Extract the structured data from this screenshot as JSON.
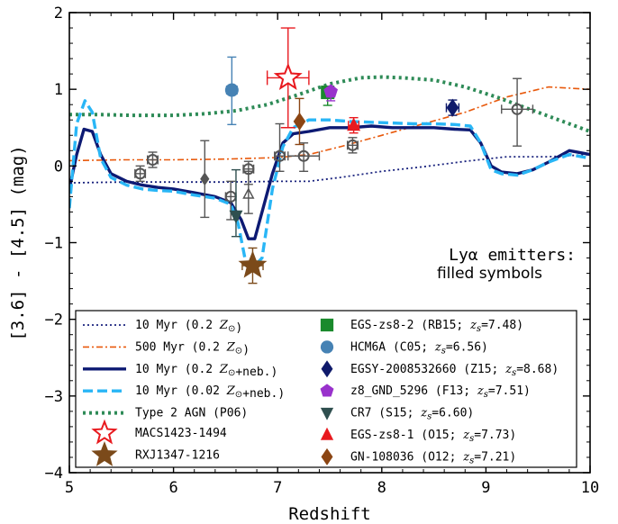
{
  "chart_data": {
    "type": "line",
    "xlabel": "Redshift",
    "ylabel": "[3.6] - [4.5] (mag)",
    "xlim": [
      5,
      10
    ],
    "ylim": [
      -4,
      2
    ],
    "xticks": [
      "5",
      "6",
      "7",
      "8",
      "9",
      "10"
    ],
    "yticks": [
      "−4",
      "−3",
      "−2",
      "−1",
      "0",
      "1",
      "2"
    ],
    "annotation_line1": "Lyα emitters:",
    "annotation_line2": "filled symbols",
    "series": [
      {
        "name": "10 Myr (0.2 Z⊙)",
        "color": "#1a237e",
        "style": "dotted",
        "x": [
          5.0,
          5.5,
          6.0,
          6.5,
          7.0,
          7.3,
          7.6,
          8.0,
          8.4,
          8.8,
          9.2,
          9.6,
          10.0
        ],
        "y": [
          -0.22,
          -0.21,
          -0.21,
          -0.21,
          -0.2,
          -0.2,
          -0.15,
          -0.07,
          -0.01,
          0.06,
          0.12,
          0.12,
          0.15
        ]
      },
      {
        "name": "500 Myr (0.2 Z⊙)",
        "color": "#e8590c",
        "style": "dashdot",
        "x": [
          5.0,
          5.5,
          6.0,
          6.5,
          7.0,
          7.3,
          7.6,
          8.0,
          8.4,
          8.8,
          9.2,
          9.6,
          10.0
        ],
        "y": [
          0.07,
          0.08,
          0.08,
          0.09,
          0.11,
          0.15,
          0.25,
          0.4,
          0.55,
          0.7,
          0.9,
          1.03,
          1.0
        ]
      },
      {
        "name": "10 Myr (0.2 Z⊙+neb.)",
        "color": "#0d1a73",
        "style": "solid-thick",
        "x": [
          5.0,
          5.07,
          5.14,
          5.22,
          5.3,
          5.4,
          5.55,
          5.7,
          5.85,
          6.0,
          6.2,
          6.4,
          6.55,
          6.65,
          6.72,
          6.78,
          6.85,
          6.95,
          7.05,
          7.15,
          7.3,
          7.5,
          7.7,
          7.9,
          8.1,
          8.3,
          8.5,
          8.7,
          8.85,
          8.95,
          9.05,
          9.15,
          9.3,
          9.45,
          9.6,
          9.8,
          10.0
        ],
        "y": [
          -0.3,
          0.15,
          0.48,
          0.45,
          0.15,
          -0.1,
          -0.2,
          -0.25,
          -0.28,
          -0.3,
          -0.35,
          -0.4,
          -0.48,
          -0.7,
          -0.95,
          -0.95,
          -0.6,
          -0.1,
          0.3,
          0.42,
          0.45,
          0.5,
          0.5,
          0.52,
          0.5,
          0.5,
          0.5,
          0.48,
          0.47,
          0.3,
          0.0,
          -0.08,
          -0.1,
          -0.05,
          0.05,
          0.2,
          0.15
        ]
      },
      {
        "name": "10 Myr (0.02 Z⊙+neb.)",
        "color": "#29b6f6",
        "style": "dashed-thick",
        "x": [
          5.0,
          5.07,
          5.15,
          5.22,
          5.3,
          5.4,
          5.55,
          5.7,
          5.85,
          6.0,
          6.2,
          6.4,
          6.55,
          6.62,
          6.7,
          6.78,
          6.85,
          6.95,
          7.05,
          7.15,
          7.3,
          7.5,
          7.7,
          7.9,
          8.1,
          8.3,
          8.5,
          8.7,
          8.85,
          8.95,
          9.05,
          9.15,
          9.3,
          9.45,
          9.6,
          9.8,
          10.0
        ],
        "y": [
          -0.55,
          0.55,
          0.85,
          0.7,
          0.1,
          -0.15,
          -0.25,
          -0.3,
          -0.32,
          -0.33,
          -0.38,
          -0.42,
          -0.5,
          -0.75,
          -1.3,
          -1.3,
          -1.2,
          -0.3,
          0.25,
          0.5,
          0.6,
          0.6,
          0.58,
          0.57,
          0.56,
          0.55,
          0.55,
          0.54,
          0.52,
          0.3,
          -0.05,
          -0.1,
          -0.12,
          -0.05,
          0.05,
          0.15,
          0.1
        ]
      },
      {
        "name": "Type 2 AGN (P06)",
        "color": "#2e8b57",
        "style": "dotted-thick",
        "x": [
          5.0,
          5.3,
          5.6,
          6.0,
          6.3,
          6.6,
          6.9,
          7.2,
          7.5,
          7.8,
          8.0,
          8.2,
          8.5,
          8.8,
          9.1,
          9.4,
          9.7,
          10.0
        ],
        "y": [
          0.67,
          0.67,
          0.66,
          0.66,
          0.68,
          0.72,
          0.8,
          0.93,
          1.07,
          1.15,
          1.16,
          1.15,
          1.12,
          1.03,
          0.9,
          0.75,
          0.6,
          0.45
        ]
      }
    ],
    "open_circles": {
      "x": [
        5.68,
        5.8,
        6.55,
        6.72,
        7.02,
        7.25,
        7.72,
        9.3
      ],
      "y": [
        -0.1,
        0.08,
        -0.4,
        -0.04,
        0.13,
        0.13,
        0.27,
        0.74
      ],
      "xerr": [
        0.05,
        0.05,
        0.05,
        0.05,
        0.05,
        0.15,
        0.05,
        0.15
      ],
      "yerr_up": [
        0.1,
        0.1,
        0.2,
        0.1,
        0.42,
        0.17,
        0.1,
        0.4
      ],
      "yerr_dn": [
        0.1,
        0.1,
        0.3,
        0.2,
        0.2,
        0.2,
        0.1,
        0.48
      ]
    },
    "gray_markers": [
      {
        "shape": "diamond",
        "x": 6.3,
        "y": -0.17,
        "xerr": 0.0,
        "yerr_up": 0.5,
        "yerr_dn": 0.5
      },
      {
        "shape": "triangle-open",
        "x": 6.72,
        "y": -0.37,
        "xerr": 0.0,
        "yerr_up": 0.3,
        "yerr_dn": 0.25
      }
    ],
    "points": [
      {
        "name": "MACS1423-1494",
        "shape": "star-open",
        "color": "#e8191e",
        "x": 7.1,
        "y": 1.15,
        "xerr": 0.2,
        "yerr_up": 0.65,
        "yerr_dn": 0.65
      },
      {
        "name": "RXJ1347-1216",
        "shape": "star-filled",
        "color": "#7b4a1a",
        "x": 6.76,
        "y": -1.3,
        "xerr": 0.1,
        "yerr_up": 0.23,
        "yerr_dn": 0.23
      },
      {
        "name": "EGS-zs8-2 (RB15; z_s=7.48)",
        "shape": "square",
        "color": "#1a8a2c",
        "x": 7.48,
        "y": 0.96,
        "xerr": 0.0,
        "yerr_up": 0.05,
        "yerr_dn": 0.17
      },
      {
        "name": "HCM6A (C05; z_s=6.56)",
        "shape": "circle",
        "color": "#4682b4",
        "x": 6.56,
        "y": 0.99,
        "xerr": 0.05,
        "yerr_up": 0.43,
        "yerr_dn": 0.45
      },
      {
        "name": "EGSY-2008532660 (Z15; z_s=8.68)",
        "shape": "diamond",
        "color": "#0f1a6b",
        "x": 8.68,
        "y": 0.76,
        "xerr": 0.06,
        "yerr_up": 0.1,
        "yerr_dn": 0.1
      },
      {
        "name": "z8_GND_5296 (F13; z_s=7.51)",
        "shape": "pentagon",
        "color": "#9932cc",
        "x": 7.51,
        "y": 0.97,
        "xerr": 0.02,
        "yerr_up": 0.05,
        "yerr_dn": 0.12
      },
      {
        "name": "CR7 (S15; z_s=6.60)",
        "shape": "triangle-down",
        "color": "#2f4f4f",
        "x": 6.6,
        "y": -0.65,
        "xerr": 0.02,
        "yerr_up": 0.6,
        "yerr_dn": 0.27
      },
      {
        "name": "EGS-zs8-1 (O15; z_s=7.73)",
        "shape": "triangle-up",
        "color": "#e8191e",
        "x": 7.73,
        "y": 0.53,
        "xerr": 0.05,
        "yerr_up": 0.1,
        "yerr_dn": 0.1
      },
      {
        "name": "GN-108036 (O12; z_s=7.21)",
        "shape": "diamond",
        "color": "#8b4513",
        "x": 7.21,
        "y": 0.58,
        "xerr": 0.0,
        "yerr_up": 0.3,
        "yerr_dn": 0.3
      }
    ],
    "legend_placement": "lower-center",
    "grid": false
  }
}
